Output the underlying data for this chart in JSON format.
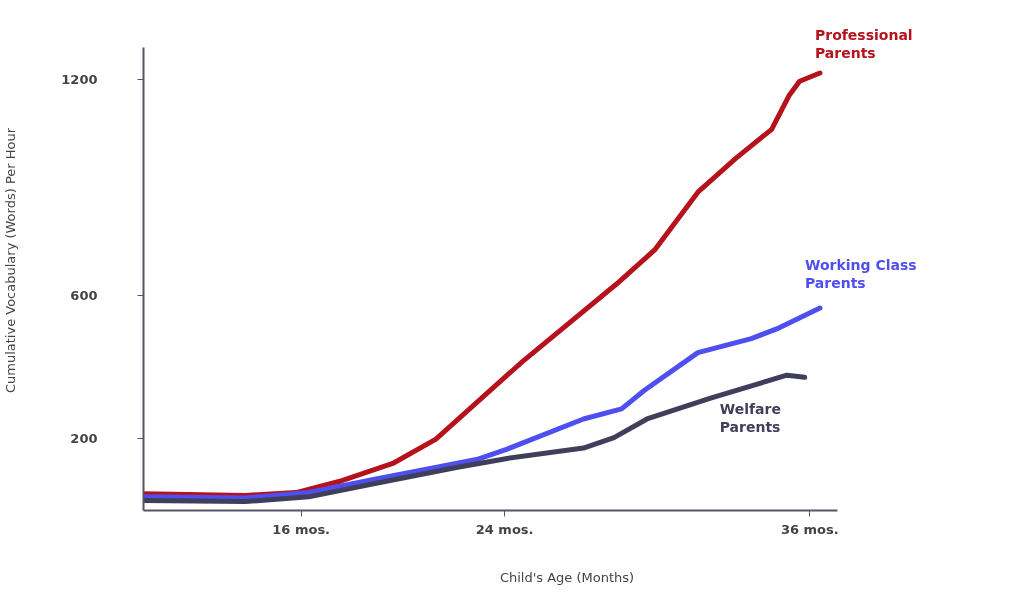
{
  "chart_data": {
    "type": "line",
    "xlabel": "Child's Age (Months)",
    "ylabel": "Cumulative Vocabulary (Words) Per Hour",
    "xlim": [
      9.8,
      37.1
    ],
    "ylim": [
      0,
      1290
    ],
    "xticks": [
      {
        "value": 16,
        "label": "16 mos."
      },
      {
        "value": 24,
        "label": "24 mos."
      },
      {
        "value": 36,
        "label": "36 mos."
      }
    ],
    "yticks": [
      200,
      600,
      1200
    ],
    "grid": false,
    "marker": "none",
    "line_style": "solid",
    "series": [
      {
        "name": "Professional Parents",
        "color": "#b5121b",
        "x": [
          9.8,
          13.8,
          15.8,
          17.6,
          19.6,
          21.3,
          24.7,
          28.4,
          29.9,
          31.6,
          33.1,
          34.5,
          35.2,
          35.6,
          36.4
        ],
        "values": [
          47,
          42,
          50,
          83,
          131,
          199,
          415,
          631,
          726,
          887,
          982,
          1062,
          1158,
          1196,
          1219
        ]
      },
      {
        "name": "Working Class Parents",
        "color": "#4f4ff0",
        "x": [
          9.8,
          13.8,
          16.3,
          18.8,
          22.9,
          24.1,
          27.1,
          28.6,
          29.5,
          31.6,
          33.7,
          34.8,
          36.4
        ],
        "values": [
          38,
          35,
          50,
          86,
          142,
          171,
          255,
          283,
          335,
          440,
          479,
          509,
          564
        ]
      },
      {
        "name": "Welfare Parents",
        "color": "#3f3f5c",
        "x": [
          9.8,
          13.8,
          16.3,
          18.8,
          22.1,
          24.1,
          27.1,
          28.3,
          29.6,
          32.1,
          35.1,
          35.8
        ],
        "values": [
          28,
          25,
          38,
          74,
          120,
          145,
          174,
          203,
          255,
          313,
          377,
          371
        ]
      }
    ]
  }
}
